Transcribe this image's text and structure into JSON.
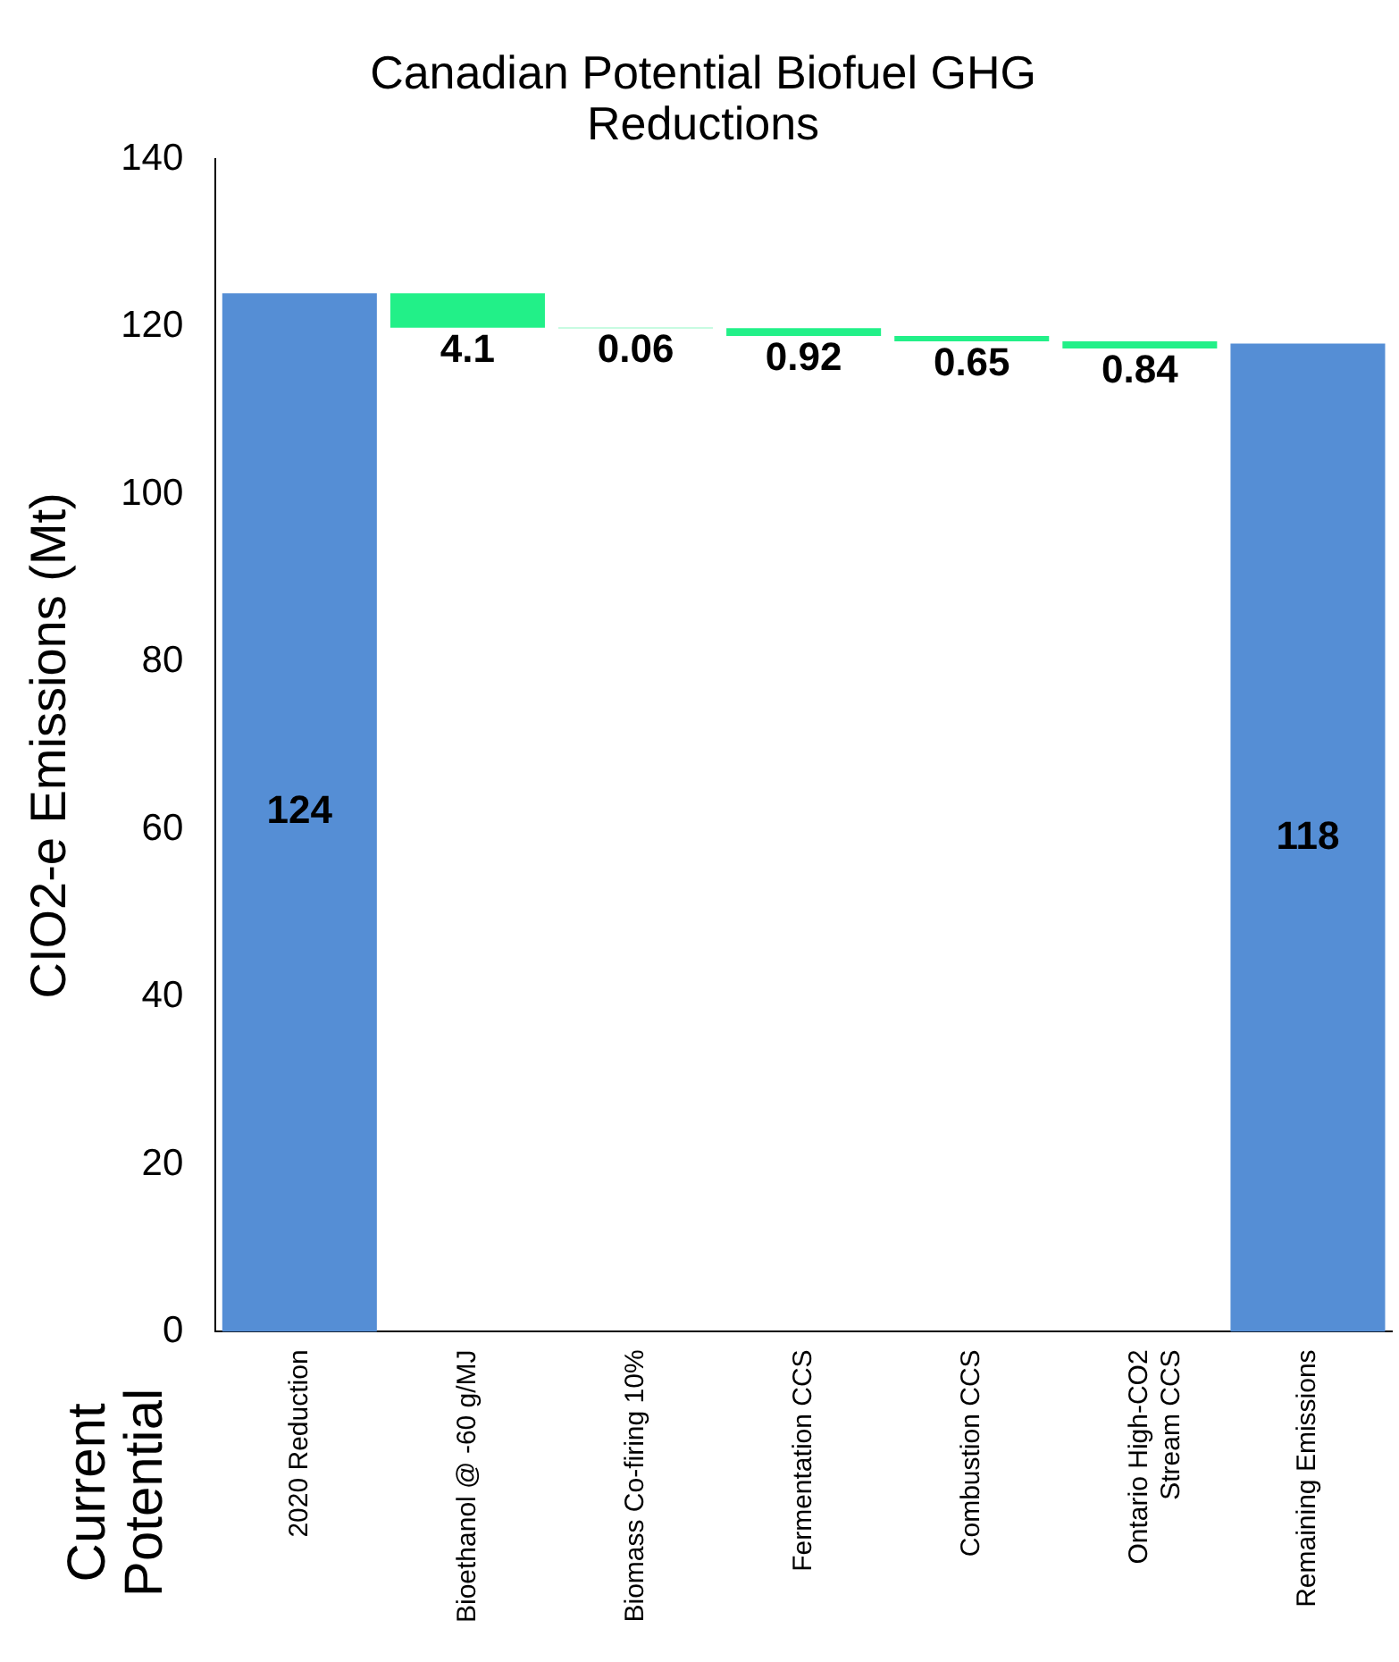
{
  "chart_data": {
    "type": "bar",
    "title": "Canadian Potential Biofuel GHG Reductions",
    "ylabel": "CIO2-e Emissions (Mt)",
    "annotations": [
      "Current Potential"
    ],
    "categories": [
      "2020 Reduction",
      "Bioethanol @ -60 g/MJ",
      "Biomass Co-firing 10%",
      "Fermentation CCS",
      "Combustion CCS",
      "Ontario High-CO2 Stream CCS",
      "Remaining Emissions"
    ],
    "values": [
      124,
      4.1,
      0.06,
      0.92,
      0.65,
      0.84,
      118
    ],
    "base": [
      0,
      119.9,
      119.84,
      118.92,
      118.27,
      117.43,
      0
    ],
    "colors": [
      "#558ed5",
      "#22f088",
      "#22f088",
      "#22f088",
      "#22f088",
      "#22f088",
      "#558ed5"
    ],
    "ylim": [
      0,
      140
    ],
    "yticks": [
      0,
      20,
      40,
      60,
      80,
      100,
      120,
      140
    ],
    "grid": false,
    "legend": false,
    "data_labels": true
  }
}
